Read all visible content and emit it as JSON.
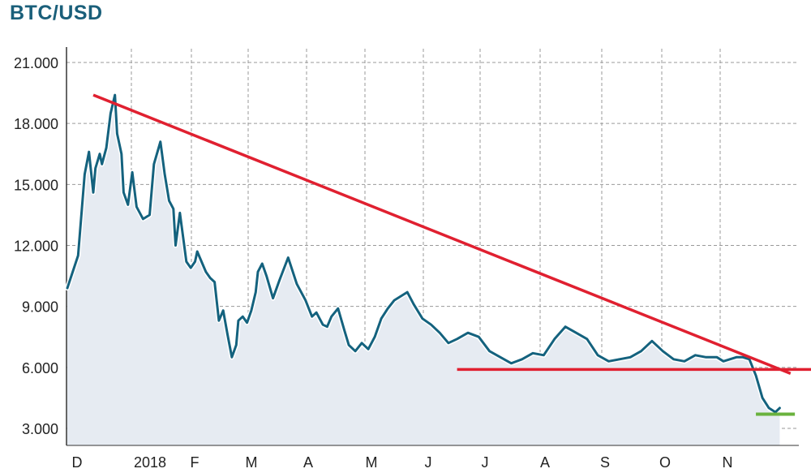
{
  "chart_data": {
    "type": "line",
    "title": "BTC/USD",
    "xlabel": "",
    "ylabel": "",
    "ylim": [
      1500,
      21900
    ],
    "yticks": [
      3000,
      6000,
      9000,
      12000,
      15000,
      18000,
      21000
    ],
    "ytick_labels": [
      "3.000",
      "6.000",
      "9.000",
      "12.000",
      "15.000",
      "18.000",
      "21.000"
    ],
    "xtick_labels": [
      "D",
      "2018",
      "F",
      "M",
      "A",
      "M",
      "J",
      "J",
      "A",
      "S",
      "O",
      "N"
    ],
    "grid": true,
    "series": [
      {
        "x": [
          0,
          5,
          8,
          10,
          12,
          13,
          15,
          16,
          18,
          20,
          22,
          23,
          25,
          26,
          28,
          30,
          32,
          35,
          38,
          40,
          43,
          45,
          47,
          49,
          50,
          52,
          55,
          57,
          59,
          60,
          62,
          64,
          66,
          68,
          70,
          72,
          74,
          76,
          78,
          79,
          81,
          83,
          85,
          87,
          88,
          90,
          92,
          95,
          98,
          102,
          106,
          110,
          113,
          115,
          118,
          120,
          122,
          125,
          128,
          130,
          133,
          136,
          139,
          142,
          145,
          148,
          151,
          154,
          157,
          160,
          164,
          168,
          172,
          176,
          180,
          185,
          190,
          195,
          200,
          205,
          210,
          215,
          220,
          225,
          230,
          235,
          240,
          245,
          250,
          255,
          260,
          265,
          270,
          275,
          280,
          285,
          290,
          295,
          300,
          303,
          306,
          309,
          312,
          315,
          318,
          321,
          324,
          327,
          329
        ],
        "values": [
          9900,
          11500,
          15500,
          16600,
          14600,
          15800,
          16500,
          16000,
          16800,
          18500,
          19400,
          17500,
          16500,
          14600,
          14000,
          15600,
          13900,
          13300,
          13500,
          16000,
          17100,
          15500,
          14200,
          13800,
          12000,
          13600,
          11200,
          10900,
          11200,
          11700,
          11200,
          10700,
          10400,
          10200,
          8300,
          8800,
          7600,
          6500,
          7100,
          8300,
          8500,
          8200,
          8800,
          9700,
          10700,
          11100,
          10500,
          9400,
          10300,
          11400,
          10100,
          9300,
          8500,
          8700,
          8100,
          8000,
          8500,
          8900,
          7800,
          7100,
          6800,
          7200,
          6900,
          7500,
          8400,
          8900,
          9300,
          9500,
          9700,
          9100,
          8400,
          8100,
          7700,
          7200,
          7400,
          7700,
          7500,
          6800,
          6500,
          6200,
          6400,
          6700,
          6600,
          7400,
          8000,
          7700,
          7400,
          6600,
          6300,
          6400,
          6500,
          6800,
          7300,
          6800,
          6400,
          6300,
          6600,
          6500,
          6500,
          6300,
          6400,
          6500,
          6500,
          6400,
          5600,
          4500,
          4000,
          3800,
          4000
        ]
      }
    ],
    "annotations": [
      {
        "type": "trendline",
        "color": "#e02030",
        "from": [
          12,
          19400
        ],
        "to": [
          334,
          5700
        ]
      },
      {
        "type": "trendline",
        "color": "#e02030",
        "from": [
          180,
          5900
        ],
        "to": [
          344,
          5900
        ]
      },
      {
        "type": "trendline",
        "color": "#6ab23e",
        "from": [
          318,
          3700
        ],
        "to": [
          336,
          3700
        ]
      }
    ],
    "colors": {
      "line": "#14627e",
      "area": "#e6ebf2",
      "grid": "#9a9a9a",
      "title": "#1a5f7a"
    }
  }
}
